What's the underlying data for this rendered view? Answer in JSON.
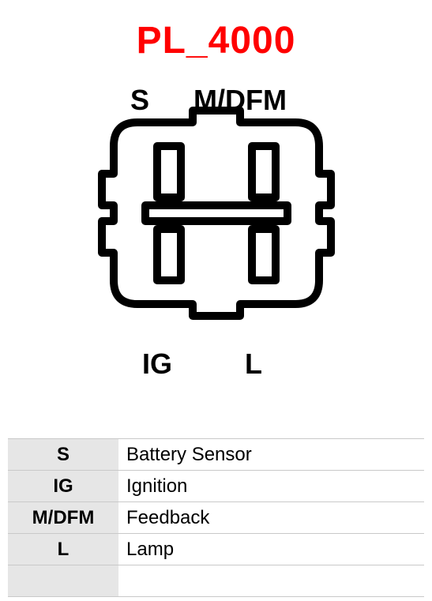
{
  "title": {
    "text": "PL_4000",
    "color": "#ff0000",
    "fontsize": 48
  },
  "connector": {
    "stroke": "#000000",
    "stroke_width": 10,
    "pin_label_fontsize": 36,
    "pins": {
      "top_left": {
        "label": "S"
      },
      "top_right": {
        "label": "M/DFM"
      },
      "bot_left": {
        "label": "IG"
      },
      "bot_right": {
        "label": "L"
      }
    }
  },
  "legend": {
    "header_bg": "#e6e6e6",
    "row_border": "#c9c9c9",
    "sym_fontsize": 24,
    "desc_fontsize": 24,
    "rows": [
      {
        "sym": "S",
        "desc": "Battery Sensor"
      },
      {
        "sym": "IG",
        "desc": "Ignition"
      },
      {
        "sym": "M/DFM",
        "desc": "Feedback"
      },
      {
        "sym": "L",
        "desc": "Lamp"
      },
      {
        "sym": "",
        "desc": ""
      }
    ]
  }
}
